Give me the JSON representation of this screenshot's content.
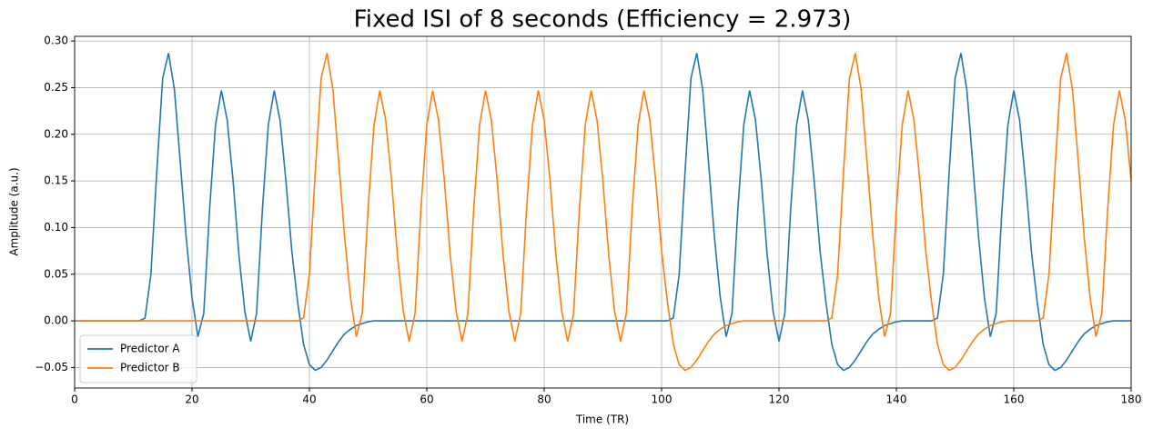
{
  "chart_data": {
    "type": "line",
    "title": "Fixed ISI of 8 seconds (Efficiency = 2.973)",
    "x_label": "Time (TR)",
    "y_label": "Amplitude (a.u.)",
    "x": [
      0,
      1,
      2,
      3,
      4,
      5,
      6,
      7,
      8,
      9,
      10,
      11,
      12,
      13,
      14,
      15,
      16,
      17,
      18,
      19,
      20,
      21,
      22,
      23,
      24,
      25,
      26,
      27,
      28,
      29,
      30,
      31,
      32,
      33,
      34,
      35,
      36,
      37,
      38,
      39,
      40,
      41,
      42,
      43,
      44,
      45,
      46,
      47,
      48,
      49,
      50,
      51,
      52,
      53,
      54,
      55,
      56,
      57,
      58,
      59,
      60,
      61,
      62,
      63,
      64,
      65,
      66,
      67,
      68,
      69,
      70,
      71,
      72,
      73,
      74,
      75,
      76,
      77,
      78,
      79,
      80,
      81,
      82,
      83,
      84,
      85,
      86,
      87,
      88,
      89,
      90,
      91,
      92,
      93,
      94,
      95,
      96,
      97,
      98,
      99,
      100,
      101,
      102,
      103,
      104,
      105,
      106,
      107,
      108,
      109,
      110,
      111,
      112,
      113,
      114,
      115,
      116,
      117,
      118,
      119,
      120,
      121,
      122,
      123,
      124,
      125,
      126,
      127,
      128,
      129,
      130,
      131,
      132,
      133,
      134,
      135,
      136,
      137,
      138,
      139,
      140,
      141,
      142,
      143,
      144,
      145,
      146,
      147,
      148,
      149,
      150,
      151,
      152,
      153,
      154,
      155,
      156,
      157,
      158,
      159,
      160,
      161,
      162,
      163,
      164,
      165,
      166,
      167,
      168,
      169,
      170,
      171,
      172,
      173,
      174,
      175,
      176,
      177,
      178,
      179,
      180
    ],
    "series": [
      {
        "name": "Predictor A",
        "color": "#1f77b4",
        "values": [
          0,
          0,
          0,
          0,
          0,
          0,
          0,
          0,
          0,
          0,
          0,
          0,
          0.003,
          0.05,
          0.16,
          0.26,
          0.287,
          0.248,
          0.17,
          0.09,
          0.025,
          -0.017,
          0.008,
          0.12,
          0.21,
          0.247,
          0.215,
          0.15,
          0.07,
          0.01,
          -0.022,
          0.008,
          0.12,
          0.21,
          0.247,
          0.215,
          0.15,
          0.075,
          0.02,
          -0.025,
          -0.047,
          -0.053,
          -0.05,
          -0.042,
          -0.032,
          -0.022,
          -0.014,
          -0.009,
          -0.005,
          -0.003,
          -0.001,
          0,
          0,
          0,
          0,
          0,
          0,
          0,
          0,
          0,
          0,
          0,
          0,
          0,
          0,
          0,
          0,
          0,
          0,
          0,
          0,
          0,
          0,
          0,
          0,
          0,
          0,
          0,
          0,
          0,
          0,
          0,
          0,
          0,
          0,
          0,
          0,
          0,
          0,
          0,
          0,
          0,
          0,
          0,
          0,
          0,
          0,
          0,
          0,
          0,
          0,
          0,
          0.003,
          0.05,
          0.16,
          0.26,
          0.287,
          0.248,
          0.17,
          0.09,
          0.025,
          -0.017,
          0.008,
          0.12,
          0.21,
          0.247,
          0.215,
          0.15,
          0.07,
          0.01,
          -0.022,
          0.008,
          0.12,
          0.21,
          0.247,
          0.215,
          0.15,
          0.075,
          0.02,
          -0.025,
          -0.047,
          -0.053,
          -0.05,
          -0.042,
          -0.032,
          -0.022,
          -0.014,
          -0.009,
          -0.005,
          -0.003,
          -0.001,
          0,
          0,
          0,
          0,
          0,
          0,
          0.003,
          0.05,
          0.16,
          0.26,
          0.287,
          0.248,
          0.17,
          0.09,
          0.025,
          -0.017,
          0.008,
          0.12,
          0.21,
          0.247,
          0.215,
          0.15,
          0.075,
          0.02,
          -0.025,
          -0.047,
          -0.053,
          -0.05,
          -0.042,
          -0.032,
          -0.022,
          -0.014,
          -0.009,
          -0.005,
          -0.003,
          -0.001,
          0,
          0,
          0,
          0
        ]
      },
      {
        "name": "Predictor B",
        "color": "#ff7f0e",
        "values": [
          0,
          0,
          0,
          0,
          0,
          0,
          0,
          0,
          0,
          0,
          0,
          0,
          0,
          0,
          0,
          0,
          0,
          0,
          0,
          0,
          0,
          0,
          0,
          0,
          0,
          0,
          0,
          0,
          0,
          0,
          0,
          0,
          0,
          0,
          0,
          0,
          0,
          0,
          0,
          0.003,
          0.05,
          0.16,
          0.26,
          0.287,
          0.248,
          0.17,
          0.09,
          0.025,
          -0.017,
          0.008,
          0.12,
          0.21,
          0.247,
          0.215,
          0.15,
          0.07,
          0.01,
          -0.022,
          0.008,
          0.12,
          0.21,
          0.247,
          0.215,
          0.15,
          0.07,
          0.01,
          -0.022,
          0.008,
          0.12,
          0.21,
          0.247,
          0.215,
          0.15,
          0.07,
          0.01,
          -0.022,
          0.008,
          0.12,
          0.21,
          0.247,
          0.215,
          0.15,
          0.07,
          0.01,
          -0.022,
          0.008,
          0.12,
          0.21,
          0.247,
          0.215,
          0.15,
          0.07,
          0.01,
          -0.022,
          0.008,
          0.12,
          0.21,
          0.247,
          0.215,
          0.15,
          0.075,
          0.02,
          -0.025,
          -0.047,
          -0.053,
          -0.05,
          -0.042,
          -0.032,
          -0.022,
          -0.014,
          -0.009,
          -0.005,
          -0.003,
          -0.001,
          0,
          0,
          0,
          0,
          0,
          0,
          0,
          0,
          0,
          0,
          0,
          0,
          0,
          0,
          0,
          0.003,
          0.05,
          0.16,
          0.26,
          0.287,
          0.248,
          0.17,
          0.09,
          0.025,
          -0.017,
          0.008,
          0.12,
          0.21,
          0.247,
          0.215,
          0.15,
          0.075,
          0.02,
          -0.025,
          -0.047,
          -0.053,
          -0.05,
          -0.042,
          -0.032,
          -0.022,
          -0.014,
          -0.009,
          -0.005,
          -0.003,
          -0.001,
          0,
          0,
          0,
          0,
          0,
          0,
          0.003,
          0.05,
          0.16,
          0.26,
          0.287,
          0.248,
          0.17,
          0.09,
          0.025,
          -0.017,
          0.008,
          0.12,
          0.21,
          0.247,
          0.215,
          0.15
        ]
      }
    ],
    "xlim": [
      0,
      180
    ],
    "xticks": [
      0,
      20,
      40,
      60,
      80,
      100,
      120,
      140,
      160,
      180
    ],
    "ylim": [
      -0.072,
      0.305
    ],
    "yticks": [
      {
        "value": -0.05,
        "label": "−0.05"
      },
      {
        "value": 0,
        "label": "0.00"
      },
      0.05,
      {
        "value": 0.1,
        "label": "0.10"
      },
      0.15,
      {
        "value": 0.2,
        "label": "0.20"
      },
      0.25,
      {
        "value": 0.3,
        "label": "0.30"
      }
    ],
    "grid": true,
    "legend": "lower left"
  }
}
